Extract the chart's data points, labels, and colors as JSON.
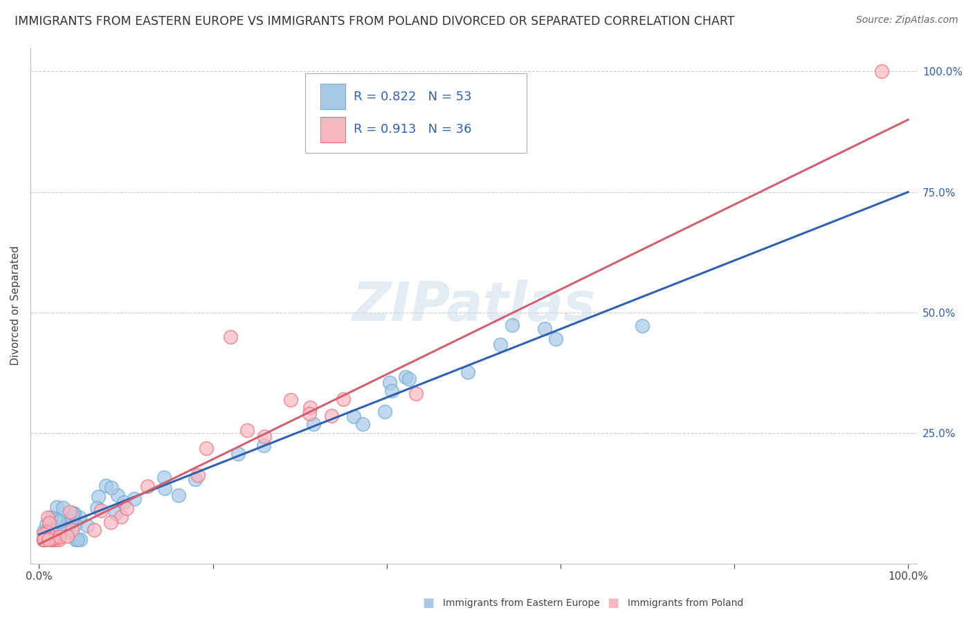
{
  "title": "IMMIGRANTS FROM EASTERN EUROPE VS IMMIGRANTS FROM POLAND DIVORCED OR SEPARATED CORRELATION CHART",
  "source": "Source: ZipAtlas.com",
  "ylabel": "Divorced or Separated",
  "watermark": "ZIPatlas",
  "series1_label": "Immigrants from Eastern Europe",
  "series2_label": "Immigrants from Poland",
  "series1_color": "#a8c8e8",
  "series2_color": "#f8b8c0",
  "series1_edge_color": "#6baed6",
  "series2_edge_color": "#f07080",
  "series1_line_color": "#3060b0",
  "series2_line_color": "#d06070",
  "legend1_R": "0.822",
  "legend1_N": "53",
  "legend2_R": "0.913",
  "legend2_N": "36",
  "xlim": [
    -0.01,
    1.01
  ],
  "ylim": [
    -0.02,
    1.05
  ],
  "xticks": [
    0.0,
    0.2,
    0.4,
    0.6,
    0.8,
    1.0
  ],
  "xtick_labels": [
    "0.0%",
    "",
    "",
    "",
    "",
    "100.0%"
  ],
  "ytick_positions_right": [
    0.25,
    0.5,
    0.75,
    1.0
  ],
  "ytick_labels_right": [
    "25.0%",
    "50.0%",
    "75.0%",
    "100.0%"
  ],
  "grid_color": "#cccccc",
  "background_color": "#ffffff",
  "title_fontsize": 12.5,
  "axis_label_fontsize": 11,
  "tick_fontsize": 11,
  "legend_fontsize": 13,
  "source_fontsize": 10,
  "series1_line": {
    "x0": 0.0,
    "x1": 1.0,
    "y0": 0.04,
    "y1": 0.75
  },
  "series2_line": {
    "x0": 0.0,
    "x1": 1.0,
    "y0": 0.02,
    "y1": 0.9
  }
}
